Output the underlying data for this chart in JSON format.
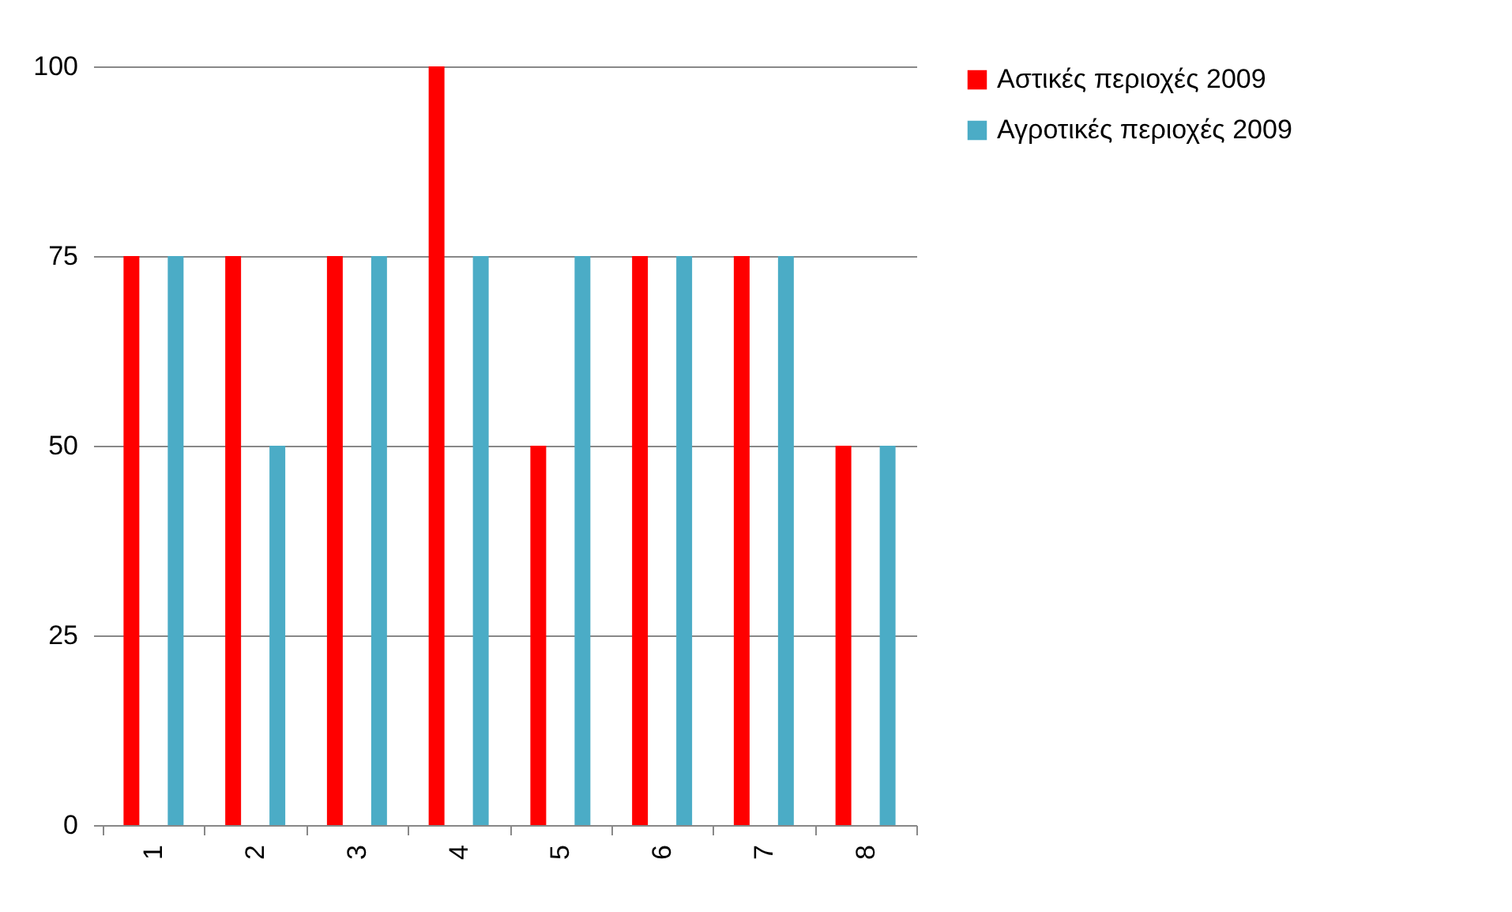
{
  "chart_data": {
    "type": "bar",
    "categories": [
      "1",
      "2",
      "3",
      "4",
      "5",
      "6",
      "7",
      "8"
    ],
    "series": [
      {
        "name": "Αστικές περιοχές 2009",
        "color": "#ff0000",
        "values": [
          75,
          75,
          75,
          100,
          50,
          75,
          75,
          50
        ]
      },
      {
        "name": "Αγροτικές περιοχές 2009",
        "color": "#4bacc6",
        "values": [
          75,
          50,
          75,
          75,
          75,
          75,
          75,
          50
        ]
      }
    ],
    "ylim": [
      0,
      100
    ],
    "yticks": [
      0,
      25,
      50,
      75,
      100
    ],
    "grid": "y",
    "legend": "right"
  }
}
